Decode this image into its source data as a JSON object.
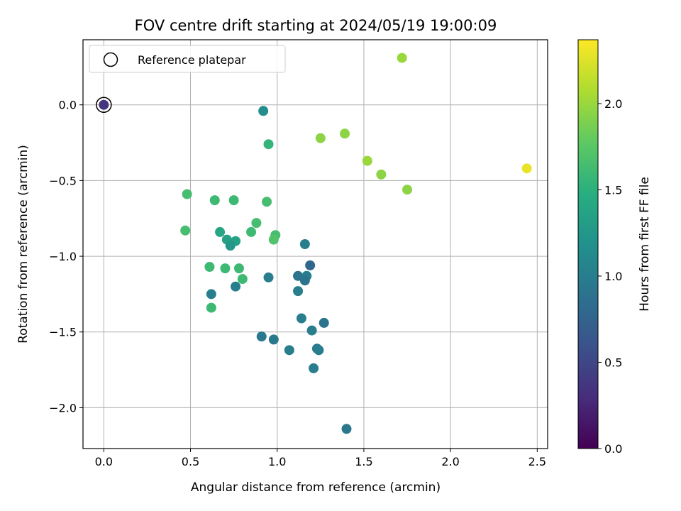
{
  "chart_data": {
    "type": "scatter",
    "title": "FOV centre drift starting at 2024/05/19 19:00:09",
    "xlabel": "Angular distance from reference (arcmin)",
    "ylabel": "Rotation from reference (arcmin)",
    "xlim": [
      -0.12,
      2.56
    ],
    "ylim": [
      -2.27,
      0.43
    ],
    "xticks": [
      0.0,
      0.5,
      1.0,
      1.5,
      2.0,
      2.5
    ],
    "yticks": [
      -2.0,
      -1.5,
      -1.0,
      -0.5,
      0.0
    ],
    "xtick_labels": [
      "0.0",
      "0.5",
      "1.0",
      "1.5",
      "2.0",
      "2.5"
    ],
    "ytick_labels": [
      "−2.0",
      "−1.5",
      "−1.0",
      "−0.5",
      "0.0"
    ],
    "grid": true,
    "colormap": "viridis",
    "colorbar": {
      "label": "Hours from first FF file",
      "range": [
        0.0,
        2.37
      ],
      "ticks": [
        0.0,
        0.5,
        1.0,
        1.5,
        2.0
      ],
      "tick_labels": [
        "0.0",
        "0.5",
        "1.0",
        "1.5",
        "2.0"
      ]
    },
    "legend": {
      "position": "top-left",
      "entries": [
        {
          "label": "Reference platepar",
          "marker": "open-circle"
        }
      ]
    },
    "reference_point": {
      "x": 0.0,
      "y": 0.0
    },
    "points": [
      {
        "x": 0.0,
        "y": 0.0,
        "hours": 0.35
      },
      {
        "x": 0.92,
        "y": -0.04,
        "hours": 1.15
      },
      {
        "x": 0.95,
        "y": -0.26,
        "hours": 1.55
      },
      {
        "x": 0.48,
        "y": -0.59,
        "hours": 1.65
      },
      {
        "x": 0.64,
        "y": -0.63,
        "hours": 1.6
      },
      {
        "x": 0.75,
        "y": -0.63,
        "hours": 1.6
      },
      {
        "x": 0.94,
        "y": -0.64,
        "hours": 1.65
      },
      {
        "x": 0.47,
        "y": -0.83,
        "hours": 1.65
      },
      {
        "x": 0.88,
        "y": -0.78,
        "hours": 1.65
      },
      {
        "x": 0.67,
        "y": -0.84,
        "hours": 1.4
      },
      {
        "x": 0.85,
        "y": -0.84,
        "hours": 1.6
      },
      {
        "x": 0.99,
        "y": -0.86,
        "hours": 1.65
      },
      {
        "x": 0.98,
        "y": -0.89,
        "hours": 1.7
      },
      {
        "x": 0.71,
        "y": -0.89,
        "hours": 1.35
      },
      {
        "x": 0.76,
        "y": -0.9,
        "hours": 1.35
      },
      {
        "x": 0.73,
        "y": -0.93,
        "hours": 1.25
      },
      {
        "x": 1.16,
        "y": -0.92,
        "hours": 1.0
      },
      {
        "x": 0.61,
        "y": -1.07,
        "hours": 1.6
      },
      {
        "x": 0.7,
        "y": -1.08,
        "hours": 1.6
      },
      {
        "x": 0.78,
        "y": -1.08,
        "hours": 1.6
      },
      {
        "x": 1.19,
        "y": -1.06,
        "hours": 0.8
      },
      {
        "x": 1.12,
        "y": -1.13,
        "hours": 0.9
      },
      {
        "x": 1.17,
        "y": -1.13,
        "hours": 1.0
      },
      {
        "x": 0.95,
        "y": -1.14,
        "hours": 1.0
      },
      {
        "x": 1.16,
        "y": -1.16,
        "hours": 0.9
      },
      {
        "x": 0.8,
        "y": -1.15,
        "hours": 1.6
      },
      {
        "x": 0.76,
        "y": -1.2,
        "hours": 1.0
      },
      {
        "x": 1.12,
        "y": -1.23,
        "hours": 1.0
      },
      {
        "x": 0.62,
        "y": -1.25,
        "hours": 1.0
      },
      {
        "x": 0.62,
        "y": -1.34,
        "hours": 1.6
      },
      {
        "x": 1.14,
        "y": -1.41,
        "hours": 1.0
      },
      {
        "x": 1.27,
        "y": -1.44,
        "hours": 0.9
      },
      {
        "x": 1.2,
        "y": -1.49,
        "hours": 1.0
      },
      {
        "x": 0.91,
        "y": -1.53,
        "hours": 0.95
      },
      {
        "x": 0.98,
        "y": -1.55,
        "hours": 0.95
      },
      {
        "x": 1.23,
        "y": -1.61,
        "hours": 0.95
      },
      {
        "x": 1.24,
        "y": -1.62,
        "hours": 1.0
      },
      {
        "x": 1.07,
        "y": -1.62,
        "hours": 1.0
      },
      {
        "x": 1.21,
        "y": -1.74,
        "hours": 1.0
      },
      {
        "x": 1.4,
        "y": -2.14,
        "hours": 0.95
      },
      {
        "x": 1.72,
        "y": 0.31,
        "hours": 2.0
      },
      {
        "x": 1.25,
        "y": -0.22,
        "hours": 1.95
      },
      {
        "x": 1.39,
        "y": -0.19,
        "hours": 1.95
      },
      {
        "x": 1.52,
        "y": -0.37,
        "hours": 2.0
      },
      {
        "x": 1.6,
        "y": -0.46,
        "hours": 1.95
      },
      {
        "x": 1.75,
        "y": -0.56,
        "hours": 1.95
      },
      {
        "x": 2.44,
        "y": -0.42,
        "hours": 2.3
      }
    ]
  }
}
